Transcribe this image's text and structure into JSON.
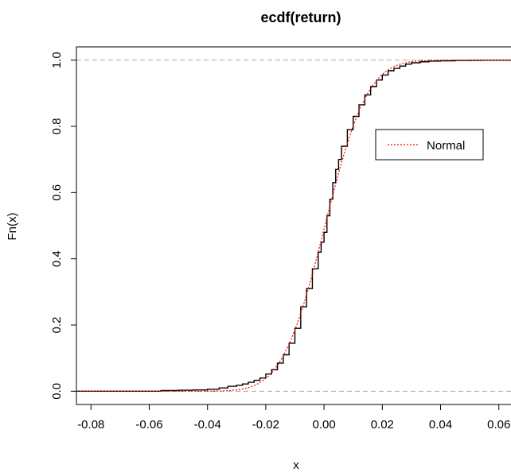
{
  "chart_data": {
    "type": "line",
    "title": "ecdf(return)",
    "xlabel": "x",
    "ylabel": "Fn(x)",
    "xlim": [
      -0.085,
      0.068
    ],
    "ylim": [
      -0.04,
      1.04
    ],
    "x_ticks": [
      -0.08,
      -0.06,
      -0.04,
      -0.02,
      0.0,
      0.02,
      0.04,
      0.06
    ],
    "x_tick_labels": [
      "-0.08",
      "-0.06",
      "-0.04",
      "-0.02",
      "0.00",
      "0.02",
      "0.04",
      "0.06"
    ],
    "y_ticks": [
      0.0,
      0.2,
      0.4,
      0.6,
      0.8,
      1.0
    ],
    "y_tick_labels": [
      "0.0",
      "0.2",
      "0.4",
      "0.6",
      "0.8",
      "1.0"
    ],
    "reference_lines": [
      0,
      1
    ],
    "legend": {
      "entries": [
        "Normal"
      ],
      "position": "top-right"
    },
    "series": [
      {
        "kind": "ecdf",
        "style": "step",
        "color": "#000000",
        "x": [
          -0.085,
          -0.056,
          -0.05,
          -0.045,
          -0.04,
          -0.036,
          -0.033,
          -0.03,
          -0.028,
          -0.026,
          -0.024,
          -0.022,
          -0.02,
          -0.018,
          -0.016,
          -0.014,
          -0.012,
          -0.01,
          -0.008,
          -0.006,
          -0.004,
          -0.002,
          -0.001,
          0.0,
          0.001,
          0.002,
          0.003,
          0.004,
          0.005,
          0.006,
          0.008,
          0.01,
          0.012,
          0.014,
          0.016,
          0.018,
          0.02,
          0.022,
          0.024,
          0.026,
          0.028,
          0.03,
          0.033,
          0.036,
          0.04,
          0.045,
          0.05,
          0.054,
          0.068
        ],
        "y": [
          0.0,
          0.002,
          0.003,
          0.004,
          0.006,
          0.01,
          0.015,
          0.018,
          0.022,
          0.027,
          0.033,
          0.04,
          0.052,
          0.065,
          0.085,
          0.11,
          0.145,
          0.19,
          0.255,
          0.31,
          0.37,
          0.42,
          0.45,
          0.48,
          0.53,
          0.58,
          0.63,
          0.67,
          0.7,
          0.74,
          0.79,
          0.83,
          0.865,
          0.895,
          0.92,
          0.94,
          0.955,
          0.968,
          0.975,
          0.982,
          0.988,
          0.992,
          0.995,
          0.997,
          0.998,
          0.999,
          0.9995,
          1.0,
          1.0
        ]
      },
      {
        "name": "Normal",
        "kind": "normal_cdf",
        "style": "dotted",
        "color": "#ff0000",
        "mean": 0.0003,
        "sd": 0.0115
      }
    ]
  }
}
